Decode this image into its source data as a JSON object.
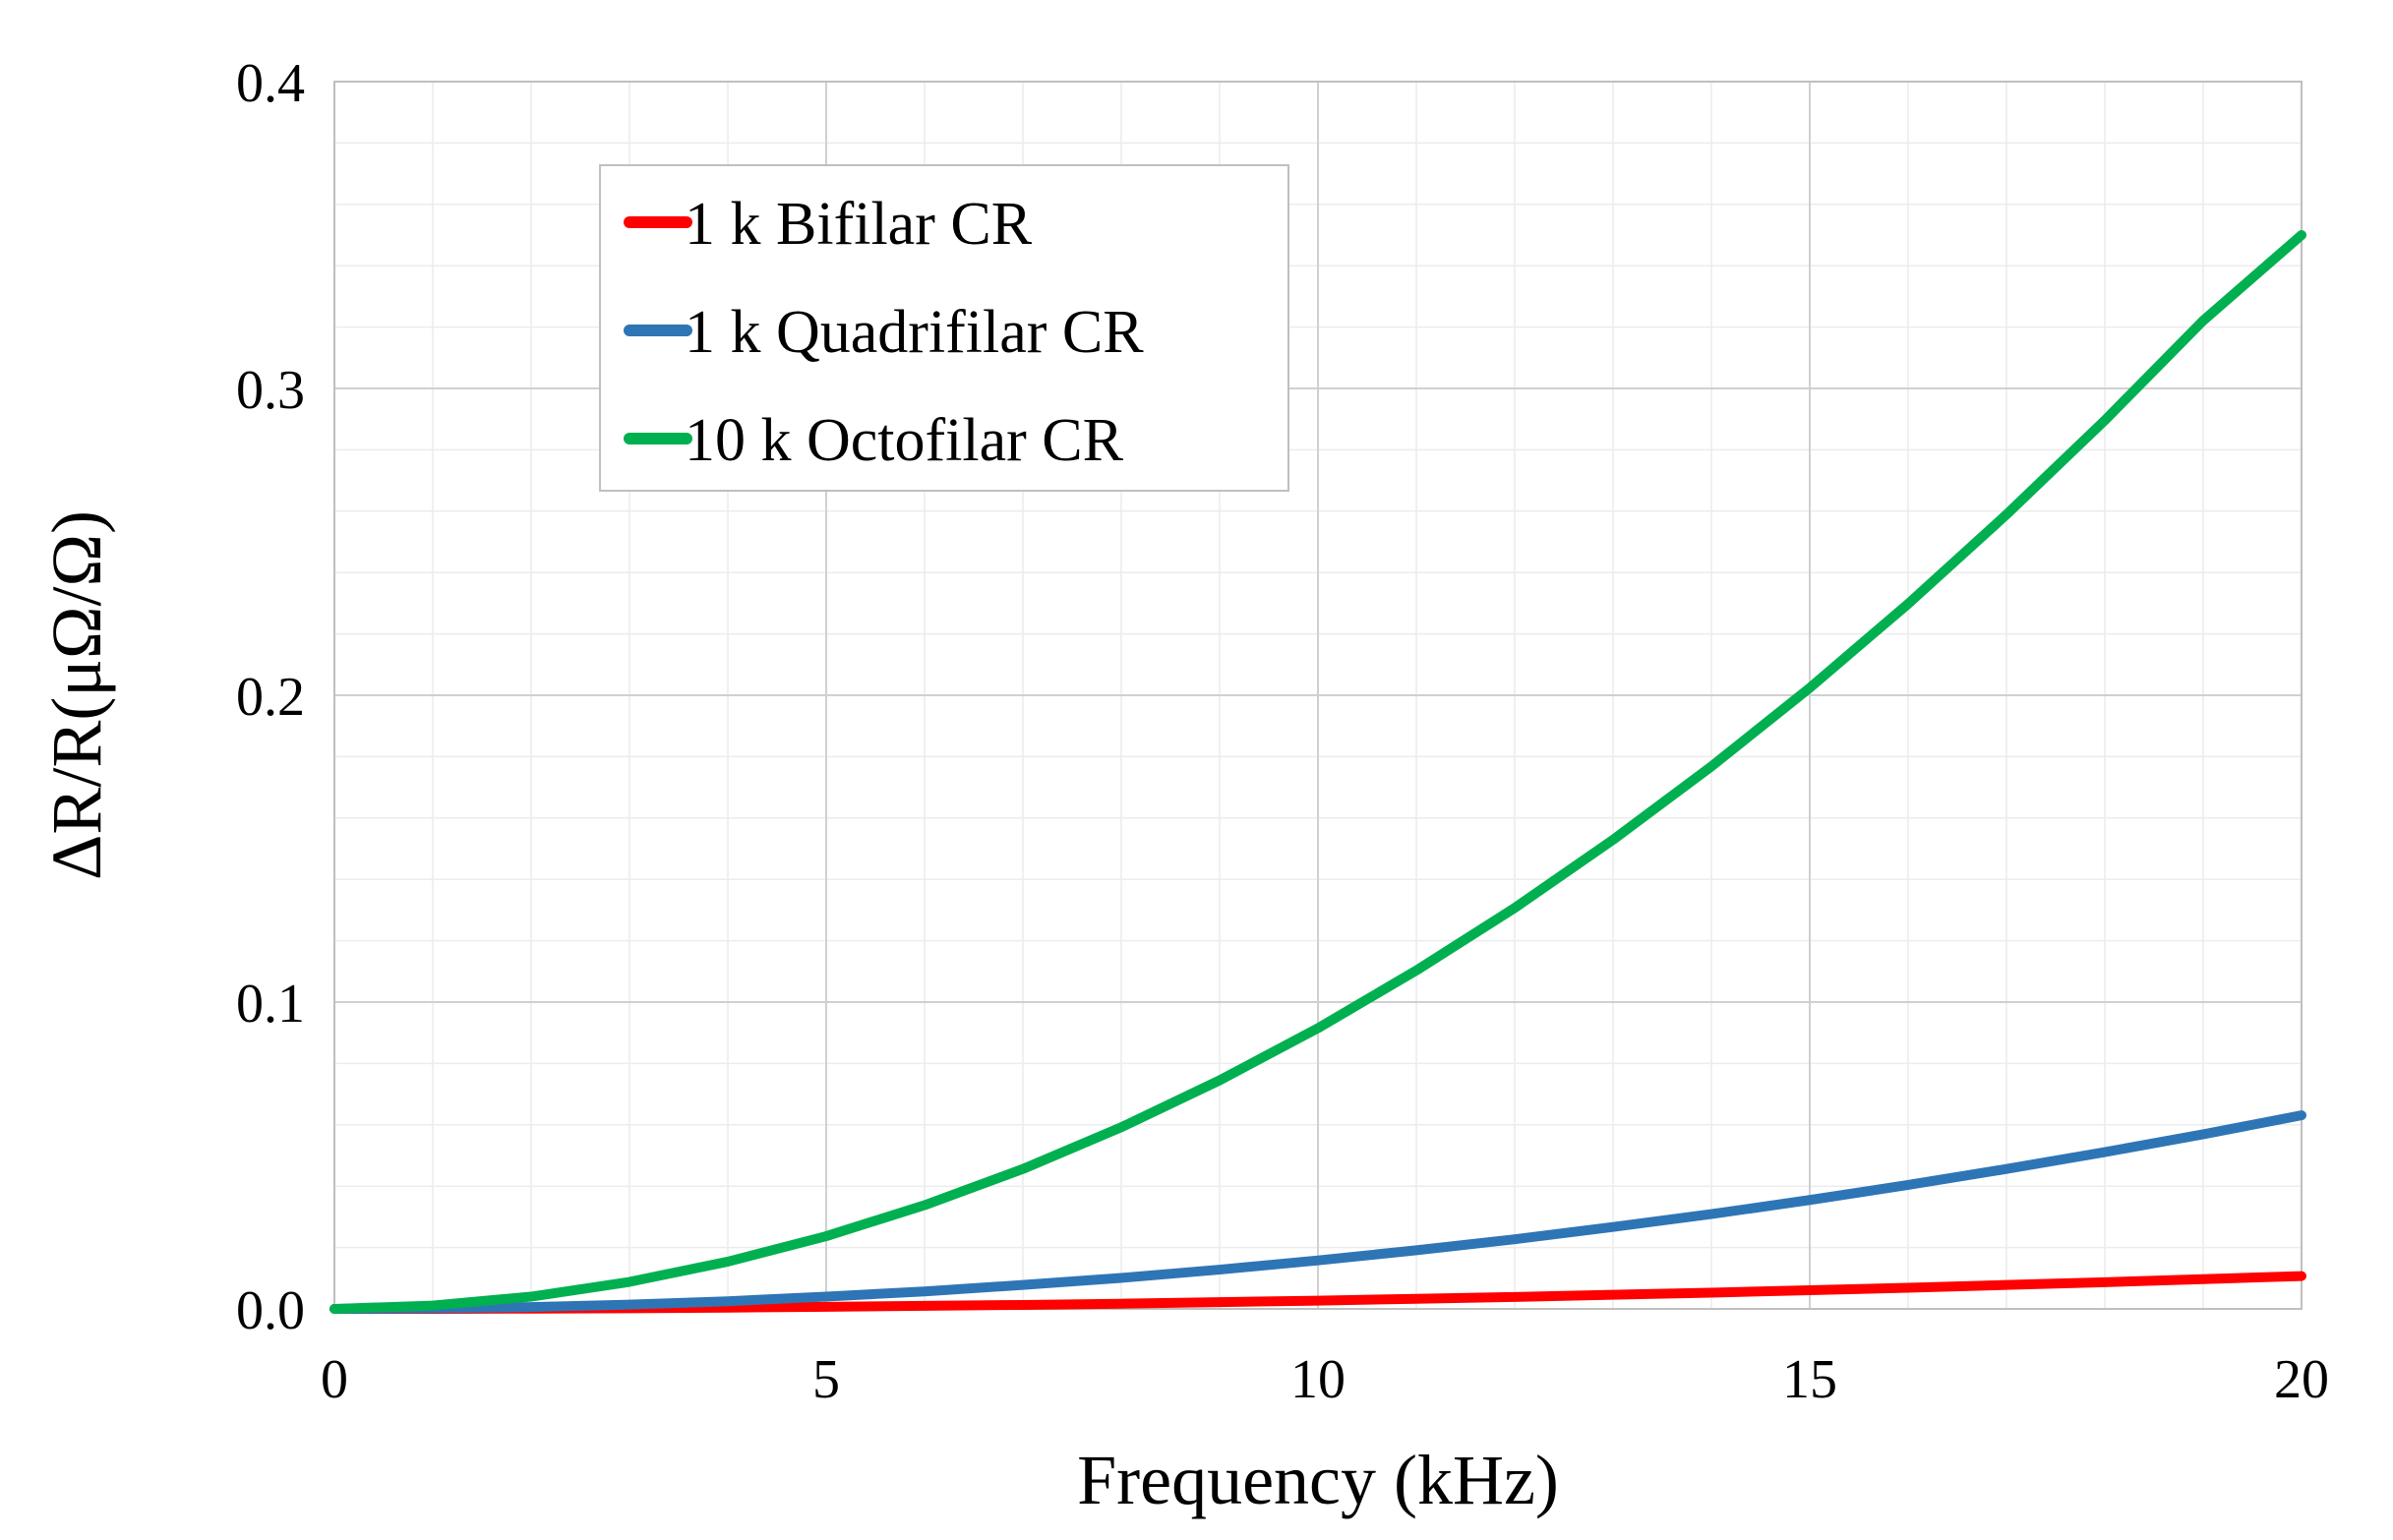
{
  "chart_data": {
    "type": "line",
    "title": "",
    "xlabel": "Frequency (kHz)",
    "ylabel": "ΔR/R(μΩ/Ω)",
    "xlim": [
      0,
      20
    ],
    "ylim": [
      0,
      0.4
    ],
    "x_ticks": [
      0,
      5,
      10,
      15,
      20
    ],
    "x_tick_labels": [
      "0",
      "5",
      "10",
      "15",
      "20"
    ],
    "y_ticks": [
      0,
      0.1,
      0.2,
      0.3,
      0.4
    ],
    "y_tick_labels": [
      "0.0",
      "0.1",
      "0.2",
      "0.3",
      "0.4"
    ],
    "grid": true,
    "minor_grid": true,
    "legend_position": "top-left",
    "x": [
      0,
      1,
      2,
      3,
      4,
      5,
      6,
      7,
      8,
      9,
      10,
      11,
      12,
      13,
      14,
      15,
      16,
      17,
      18,
      19,
      20
    ],
    "series": [
      {
        "name": "1 k Bifilar CR",
        "color": "#ff0000",
        "values": [
          0,
          0.0,
          0.0001,
          0.0002,
          0.0004,
          0.0007,
          0.001,
          0.0013,
          0.0017,
          0.0022,
          0.0027,
          0.0033,
          0.0039,
          0.0046,
          0.0053,
          0.0061,
          0.0069,
          0.0078,
          0.0087,
          0.0097,
          0.0107
        ]
      },
      {
        "name": "1 k Quadrifilar CR",
        "color": "#2e75b6",
        "values": [
          0,
          0.0002,
          0.0006,
          0.0014,
          0.0025,
          0.004,
          0.0057,
          0.0078,
          0.0101,
          0.0128,
          0.0158,
          0.0191,
          0.0227,
          0.0267,
          0.0309,
          0.0355,
          0.0404,
          0.0456,
          0.0511,
          0.0569,
          0.0631
        ]
      },
      {
        "name": "10 k Octofilar CR",
        "color": "#00b050",
        "values": [
          0,
          0.0011,
          0.004,
          0.0088,
          0.0154,
          0.0237,
          0.0338,
          0.0456,
          0.0592,
          0.0745,
          0.0915,
          0.1103,
          0.1307,
          0.1529,
          0.1768,
          0.2024,
          0.2298,
          0.2589,
          0.2896,
          0.3221,
          0.35
        ]
      }
    ]
  },
  "colors": {
    "major_grid": "#d0d0d0",
    "minor_grid": "#ececec",
    "frame": "#bfbfbf",
    "legend_border": "#bfbfbf"
  }
}
